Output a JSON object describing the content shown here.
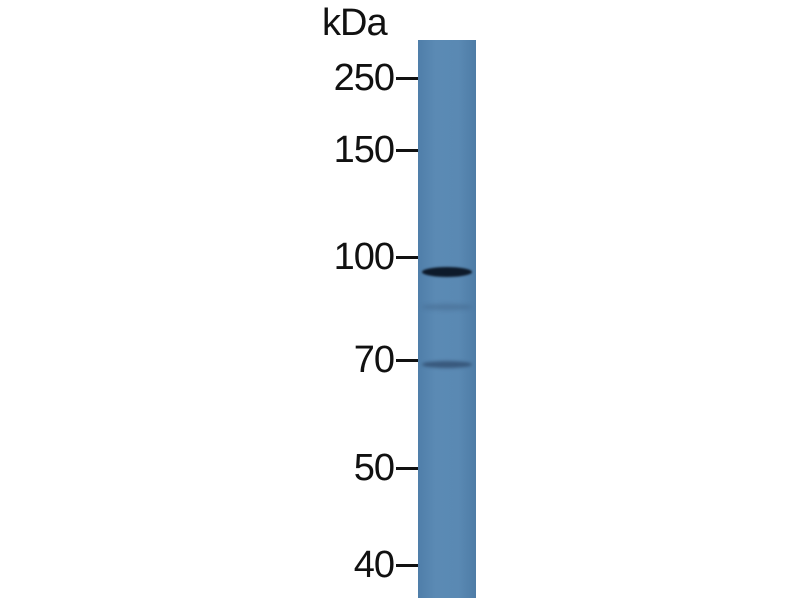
{
  "blot": {
    "unit_label": "kDa",
    "lane_color": "#5a89b3",
    "markers": [
      {
        "label": "250",
        "kda": 250
      },
      {
        "label": "150",
        "kda": 150
      },
      {
        "label": "100",
        "kda": 100
      },
      {
        "label": "70",
        "kda": 70
      },
      {
        "label": "50",
        "kda": 50
      },
      {
        "label": "40",
        "kda": 40
      }
    ],
    "bands": [
      {
        "kda": 95,
        "intensity": "strong"
      },
      {
        "kda": 84,
        "intensity": "very faint"
      },
      {
        "kda": 69,
        "intensity": "weak"
      }
    ]
  }
}
